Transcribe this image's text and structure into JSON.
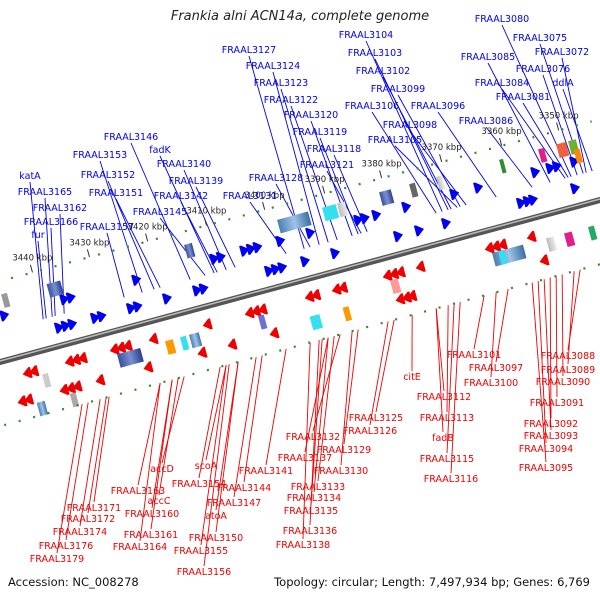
{
  "title": "Frankia alni ACN14a, complete genome",
  "footer": {
    "accession": "Accession: NC_008278",
    "summary": "Topology: circular; Length: 7,497,934 bp; Genes: 6,769"
  },
  "colors": {
    "forward": "#0000ee",
    "reverse": "#ee0000",
    "backbone": "#777777",
    "tick": "#2e8b2e"
  },
  "ticks": [
    "3350 kbp",
    "3360 kbp",
    "3370 kbp",
    "3380 kbp",
    "3390 kbp",
    "3400 kbp",
    "3410 kbp",
    "3420 kbp",
    "3430 kbp",
    "3440 kbp"
  ],
  "forward_labels": [
    "FRAAL3080",
    "FRAAL3075",
    "FRAAL3072",
    "FRAAL3085",
    "FRAAL3076",
    "FRAAL3084",
    "ddlA",
    "FRAAL3081",
    "FRAAL3086",
    "FRAAL3104",
    "FRAAL3103",
    "FRAAL3102",
    "FRAAL3099",
    "FRAAL3106",
    "FRAAL3096",
    "FRAAL3098",
    "FRAAL3105",
    "FRAAL3127",
    "FRAAL3124",
    "FRAAL3123",
    "FRAAL3122",
    "FRAAL3120",
    "FRAAL3119",
    "FRAAL3118",
    "FRAAL3121",
    "FRAAL3146",
    "fadK",
    "FRAAL3153",
    "FRAAL3140",
    "FRAAL3152",
    "FRAAL3139",
    "FRAAL3151",
    "FRAAL3128",
    "FRAAL3142",
    "FRAAL3131",
    "FRAAL3145",
    "katA",
    "FRAAL3165",
    "FRAAL3162",
    "FRAAL3166",
    "fur",
    "FRAAL3157"
  ],
  "reverse_labels": [
    "FRAAL3101",
    "FRAAL3088",
    "FRAAL3097",
    "FRAAL3089",
    "FRAAL3100",
    "FRAAL3090",
    "citE",
    "FRAAL3091",
    "FRAAL3112",
    "FRAAL3092",
    "FRAAL3113",
    "FRAAL3093",
    "fadB",
    "FRAAL3094",
    "FRAAL3115",
    "FRAAL3095",
    "FRAAL3116",
    "FRAAL3125",
    "FRAAL3126",
    "FRAAL3132",
    "FRAAL3129",
    "FRAAL3137",
    "FRAAL3130",
    "FRAAL3141",
    "FRAAL3133",
    "FRAAL3134",
    "FRAAL3135",
    "FRAAL3136",
    "FRAAL3138",
    "scoA",
    "accD",
    "FRAAL3154",
    "FRAAL3144",
    "FRAAL3163",
    "FRAAL3147",
    "accC",
    "atoA",
    "FRAAL3171",
    "FRAAL3160",
    "FRAAL3172",
    "FRAAL3174",
    "FRAAL3161",
    "FRAAL3164",
    "FRAAL3150",
    "FRAAL3176",
    "FRAAL3155",
    "FRAAL3179",
    "FRAAL3156"
  ]
}
